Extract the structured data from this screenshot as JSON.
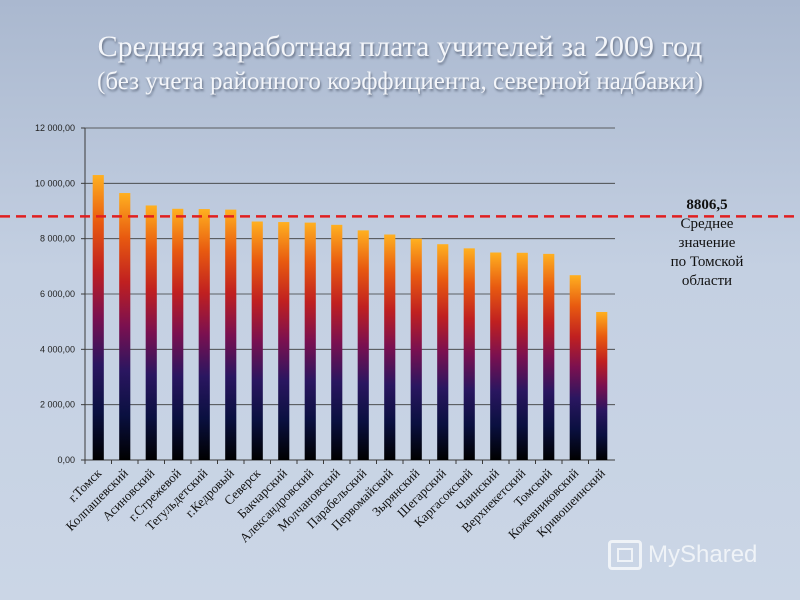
{
  "header": {
    "title": "Средняя заработная плата учителей за 2009 год",
    "subtitle": "(без учета районного коэффициента, северной надбавки)"
  },
  "average": {
    "value": 8806.5,
    "value_label": "8806,5",
    "caption_lines": [
      "Среднее",
      "значение",
      "по Томской",
      "области"
    ],
    "line_color": "#e02020"
  },
  "logo": {
    "text": "MyShared",
    "icon": "presentation-board-icon"
  },
  "chart_data": {
    "type": "bar",
    "title": "Средняя заработная плата учителей за 2009 год",
    "xlabel": "",
    "ylabel": "",
    "ylim": [
      0,
      12000
    ],
    "yticks": [
      0,
      2000,
      4000,
      6000,
      8000,
      10000,
      12000
    ],
    "ytick_labels": [
      "0,00",
      "2 000,00",
      "4 000,00",
      "6 000,00",
      "8 000,00",
      "10 000,00",
      "12 000,00"
    ],
    "grid": true,
    "categories": [
      "г.Томск",
      "Колпашевский",
      "Асиновский",
      "г.Стрежевой",
      "Тегульдетский",
      "г.Кедровый",
      "Северск",
      "Бакчарский",
      "Александровский",
      "Молчановский",
      "Парабельский",
      "Первомайский",
      "Зырянский",
      "Шегарский",
      "Каргасокский",
      "Чаинский",
      "Верхнекетский",
      "Томский",
      "Кожевниковский",
      "Кривошеинский"
    ],
    "values": [
      10300,
      9650,
      9200,
      9080,
      9070,
      9050,
      8620,
      8600,
      8580,
      8500,
      8300,
      8150,
      8000,
      7800,
      7650,
      7500,
      7490,
      7450,
      6680,
      5350
    ],
    "bar_gradient": [
      "#000000",
      "#0a1040",
      "#2a1660",
      "#7a1050",
      "#c02020",
      "#e85a10",
      "#ffb020"
    ]
  }
}
